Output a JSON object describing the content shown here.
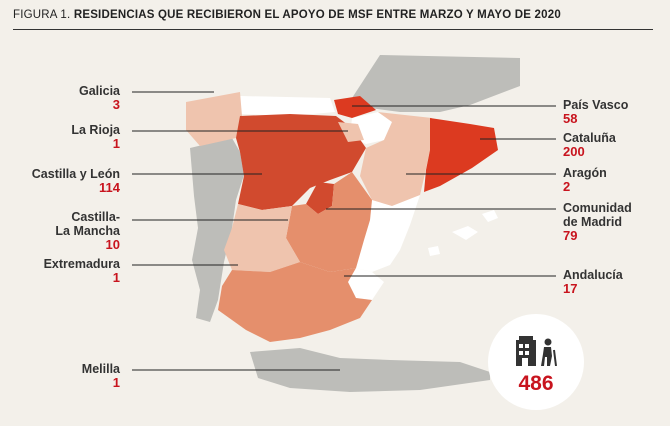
{
  "figure": {
    "prefix": "FIGURA 1.",
    "title": "RESIDENCIAS QUE RECIBIERON EL APOYO DE MSF ENTRE MARZO Y MAYO DE 2020"
  },
  "colors": {
    "highest": "#dc3a20",
    "high": "#d14a2e",
    "medium": "#e58f6c",
    "low": "#efc4ae",
    "neutral": "#b5b5b2",
    "other_land": "#bdbdb9",
    "accent": "#c8141e"
  },
  "regions": {
    "galicia": {
      "name": "Galicia",
      "value": "3"
    },
    "la_rioja": {
      "name": "La Rioja",
      "value": "1"
    },
    "castilla_leon": {
      "name": "Castilla y León",
      "value": "114"
    },
    "castilla_mancha": {
      "name": "Castilla-\nLa Mancha",
      "value": "10"
    },
    "extremadura": {
      "name": "Extremadura",
      "value": "1"
    },
    "melilla": {
      "name": "Melilla",
      "value": "1"
    },
    "pais_vasco": {
      "name": "País Vasco",
      "value": "58"
    },
    "cataluna": {
      "name": "Cataluña",
      "value": "200"
    },
    "aragon": {
      "name": "Aragón",
      "value": "2"
    },
    "madrid": {
      "name": "Comunidad\nde Madrid",
      "value": "79"
    },
    "andalucia": {
      "name": "Andalucía",
      "value": "17"
    }
  },
  "total": {
    "value": "486",
    "icon": "nursing-home-icon"
  }
}
